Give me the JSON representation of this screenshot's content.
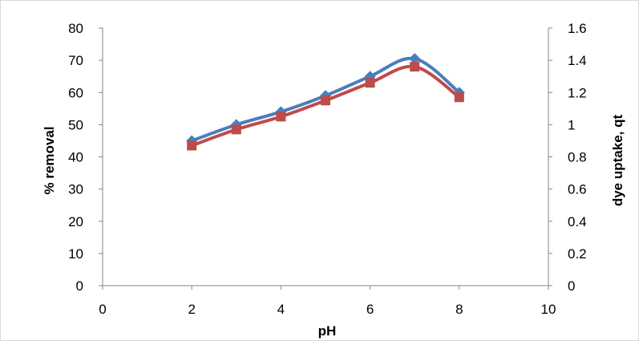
{
  "chart_data": {
    "type": "line",
    "title": "",
    "xlabel": "pH",
    "ylabel": "% removal",
    "y2label": "dye uptake, qt",
    "xlim": [
      0,
      10
    ],
    "ylim": [
      0,
      80
    ],
    "y2lim": [
      0,
      1.6
    ],
    "x_ticks": [
      "0",
      "2",
      "4",
      "6",
      "8",
      "10"
    ],
    "y_ticks": [
      "0",
      "10",
      "20",
      "30",
      "40",
      "50",
      "60",
      "70",
      "80"
    ],
    "y2_ticks": [
      "0",
      "0.2",
      "0.4",
      "0.6",
      "0.8",
      "1",
      "1.2",
      "1.4",
      "1.6"
    ],
    "grid": false,
    "legend": "none",
    "series": [
      {
        "axis": "left",
        "marker": "diamond",
        "color": "#4a7ebb",
        "x": [
          2,
          3,
          4,
          5,
          6,
          7,
          8
        ],
        "values": [
          45,
          50,
          54,
          59,
          65,
          70.5,
          60
        ]
      },
      {
        "axis": "right",
        "marker": "square",
        "color": "#be4b48",
        "x": [
          2,
          3,
          4,
          5,
          6,
          7,
          8
        ],
        "values": [
          0.87,
          0.97,
          1.05,
          1.15,
          1.26,
          1.36,
          1.17
        ]
      }
    ]
  }
}
